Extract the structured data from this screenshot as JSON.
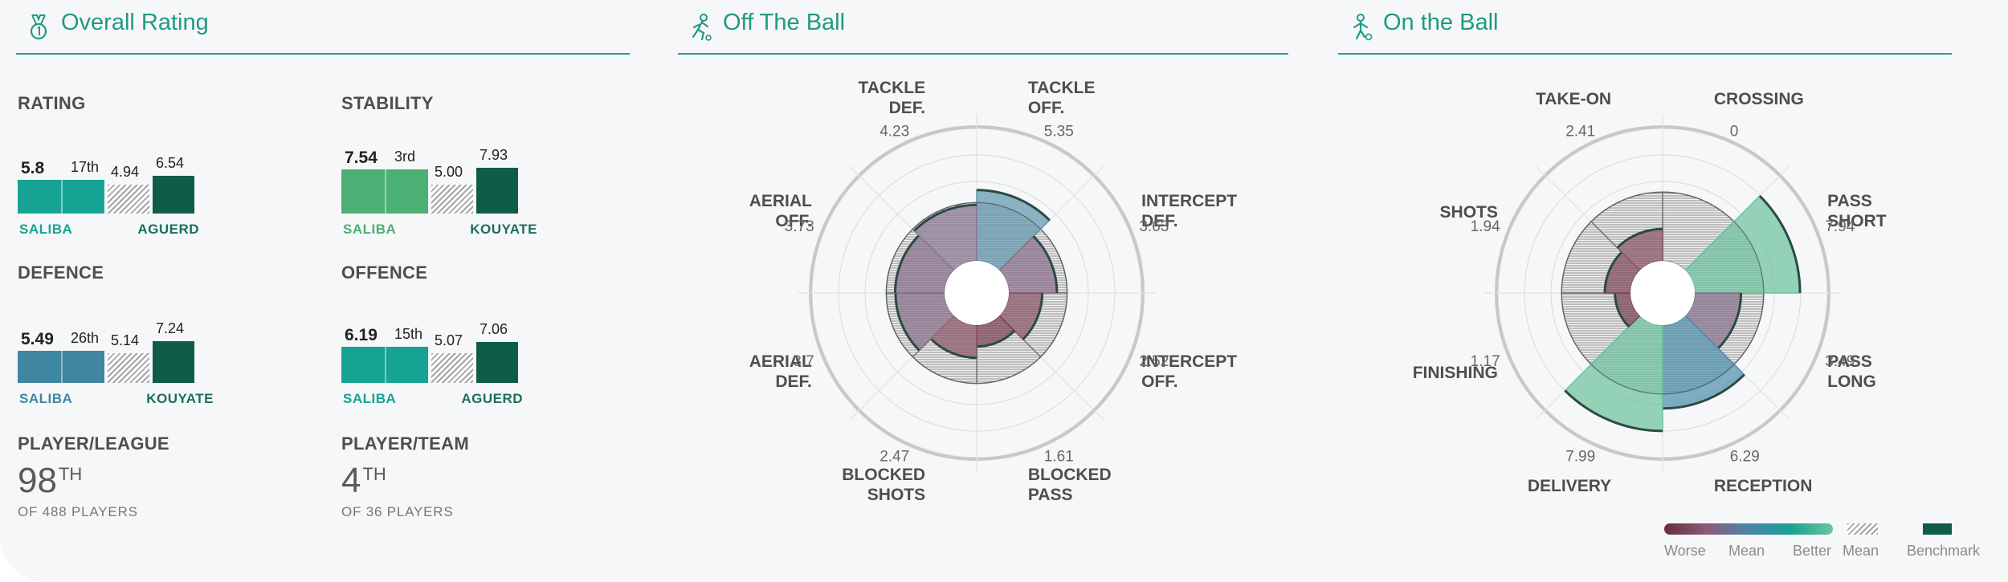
{
  "sections": {
    "overall": {
      "title": "Overall Rating",
      "icon": "medal-icon"
    },
    "off_ball": {
      "title": "Off The Ball",
      "icon": "running-player-icon"
    },
    "on_ball": {
      "title": "On the Ball",
      "icon": "player-with-ball-icon"
    }
  },
  "metrics": [
    {
      "label": "RATING",
      "value": "5.8",
      "rank": "17th",
      "mean": "4.94",
      "benchmark": "6.54",
      "player": "SALIBA",
      "benchmark_player": "AGUERD",
      "value_num": 5.8,
      "mean_num": 4.94,
      "benchmark_num": 6.54,
      "color": "#17a394"
    },
    {
      "label": "STABILITY",
      "value": "7.54",
      "rank": "3rd",
      "mean": "5.00",
      "benchmark": "7.93",
      "player": "SALIBA",
      "benchmark_player": "KOUYATE",
      "value_num": 7.54,
      "mean_num": 5.0,
      "benchmark_num": 7.93,
      "color": "#4caf74"
    },
    {
      "label": "DEFENCE",
      "value": "5.49",
      "rank": "26th",
      "mean": "5.14",
      "benchmark": "7.24",
      "player": "SALIBA",
      "benchmark_player": "KOUYATE",
      "value_num": 5.49,
      "mean_num": 5.14,
      "benchmark_num": 7.24,
      "color": "#3f86a0"
    },
    {
      "label": "OFFENCE",
      "value": "6.19",
      "rank": "15th",
      "mean": "5.07",
      "benchmark": "7.06",
      "player": "SALIBA",
      "benchmark_player": "AGUERD",
      "value_num": 6.19,
      "mean_num": 5.07,
      "benchmark_num": 7.06,
      "color": "#17a394"
    }
  ],
  "rankings": [
    {
      "label": "PLAYER/LEAGUE",
      "rank": "98",
      "suffix": "TH",
      "sub": "OF 488 PLAYERS"
    },
    {
      "label": "PLAYER/TEAM",
      "rank": "4",
      "suffix": "TH",
      "sub": "OF 36 PLAYERS"
    }
  ],
  "chart_data": [
    {
      "type": "radial-bar",
      "title": "Off The Ball",
      "categories": [
        {
          "label": [
            "TACKLE",
            "OFF."
          ],
          "value": 5.35,
          "value_text": "5.35",
          "color": "#5f97ae"
        },
        {
          "label": [
            "INTERCEPT",
            "DEF."
          ],
          "value": 3.63,
          "value_text": "3.63",
          "color": "#8a6f8c"
        },
        {
          "label": [
            "INTERCEPT",
            "OFF."
          ],
          "value": 2.52,
          "value_text": "2.52",
          "color": "#8a5468"
        },
        {
          "label": [
            "BLOCKED",
            "PASS"
          ],
          "value": 1.61,
          "value_text": "1.61",
          "color": "#7a4354"
        },
        {
          "label": [
            "BLOCKED",
            "SHOTS"
          ],
          "value": 2.47,
          "value_text": "2.47",
          "color": "#8a5468"
        },
        {
          "label": [
            "AERIAL",
            "DEF."
          ],
          "value": 3.7,
          "value_text": "3.7",
          "color": "#866f8a"
        },
        {
          "label": [
            "AERIAL",
            "OFF."
          ],
          "value": 3.73,
          "value_text": "3.73",
          "color": "#866f8a"
        },
        {
          "label": [
            "TACKLE",
            "DEF."
          ],
          "value": 4.23,
          "value_text": "4.23",
          "color": "#8c7a96"
        }
      ],
      "mean": 4.4,
      "rmax": 10
    },
    {
      "type": "radial-bar",
      "title": "On the Ball",
      "categories": [
        {
          "label": [
            "CROSSING"
          ],
          "value": 0,
          "value_text": "0",
          "color": "#6b3a46"
        },
        {
          "label": [
            "PASS",
            "SHORT"
          ],
          "value": 7.94,
          "value_text": "7.94",
          "color": "#6cc49c"
        },
        {
          "label": [
            "PASS",
            "LONG"
          ],
          "value": 3.49,
          "value_text": "3.49",
          "color": "#87708a"
        },
        {
          "label": [
            "RECEPTION"
          ],
          "value": 6.29,
          "value_text": "6.29",
          "color": "#4f8fac"
        },
        {
          "label": [
            "DELIVERY"
          ],
          "value": 7.99,
          "value_text": "7.99",
          "color": "#6cc49c"
        },
        {
          "label": [
            "FINISHING"
          ],
          "value": 1.17,
          "value_text": "1.17",
          "color": "#7a4354"
        },
        {
          "label": [
            "SHOTS"
          ],
          "value": 1.94,
          "value_text": "1.94",
          "color": "#7f4a5c"
        },
        {
          "label": [
            "TAKE-ON"
          ],
          "value": 2.41,
          "value_text": "2.41",
          "color": "#8a5468"
        }
      ],
      "mean": 5.2,
      "rmax": 10
    }
  ],
  "legend": {
    "gradient_labels": [
      "Worse",
      "Mean",
      "Better"
    ],
    "gradient_colors": [
      "#6b2d3a",
      "#8a5b78",
      "#4c84ab",
      "#17a394",
      "#6cc49c"
    ],
    "mean_label": "Mean",
    "benchmark_label": "Benchmark"
  },
  "colors": {
    "accent": "#1f9a82",
    "benchmark": "#0f5c48",
    "mean_hatch": "#9a9a9a"
  }
}
